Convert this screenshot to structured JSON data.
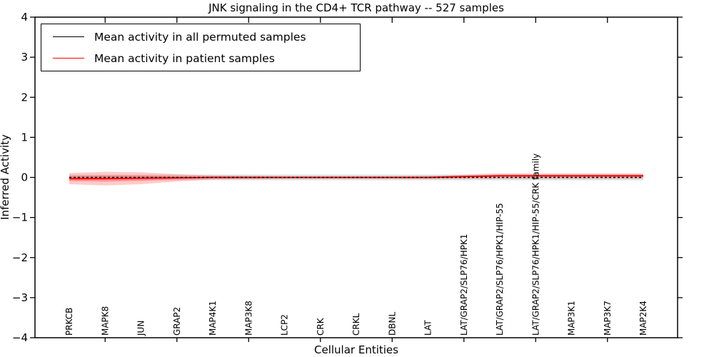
{
  "title": "JNK signaling in the CD4+ TCR pathway -- 527 samples",
  "axes": {
    "ylabel": "Inferred Activity",
    "xlabel": "Cellular Entities"
  },
  "chart_data": {
    "type": "line",
    "title": "JNK signaling in the CD4+ TCR pathway -- 527 samples",
    "xlabel": "Cellular Entities",
    "ylabel": "Inferred Activity",
    "ylim": [
      -4,
      4
    ],
    "yticks": [
      4,
      3,
      2,
      1,
      0,
      -1,
      -2,
      -3,
      -4
    ],
    "grid": false,
    "legend_position": "upper left",
    "categories": [
      "PRKCB",
      "MAPK8",
      "JUN",
      "GRAP2",
      "MAP4K1",
      "MAP3K8",
      "LCP2",
      "CRK",
      "CRKL",
      "DBNL",
      "LAT",
      "LAT/GRAP2/SLP76/HPK1",
      "LAT/GRAP2/SLP76/HPK1/HIP-55",
      "LAT/GRAP2/SLP76/HPK1/HIP-55/CRK family",
      "MAP3K1",
      "MAP3K7",
      "MAP2K4"
    ],
    "series": [
      {
        "name": "Mean activity in all permuted samples",
        "color": "#000000",
        "line_style": "dashed",
        "values": [
          0,
          0,
          0,
          0,
          0,
          0,
          0,
          0,
          0,
          0,
          0,
          0,
          0,
          0,
          0,
          0,
          0
        ],
        "std": [
          0.07,
          0.07,
          0.07,
          0.07,
          0.07,
          0.07,
          0.07,
          0.07,
          0.07,
          0.07,
          0.07,
          0.07,
          0.07,
          0.07,
          0.07,
          0.07,
          0.07
        ],
        "band_outer_color": "#dedede",
        "band_inner_color": "#d0d0d0"
      },
      {
        "name": "Mean activity in patient samples",
        "color": "#ff0000",
        "line_style": "solid",
        "values": [
          -0.03,
          -0.03,
          -0.02,
          -0.01,
          0,
          0,
          0,
          0,
          0,
          0,
          0,
          0.02,
          0.04,
          0.04,
          0.04,
          0.04,
          0.04
        ],
        "std": [
          0.14,
          0.17,
          0.15,
          0.09,
          0.05,
          0.04,
          0.03,
          0.03,
          0.03,
          0.03,
          0.035,
          0.05,
          0.06,
          0.06,
          0.06,
          0.06,
          0.06
        ],
        "band_color": "#ff3333"
      }
    ]
  }
}
